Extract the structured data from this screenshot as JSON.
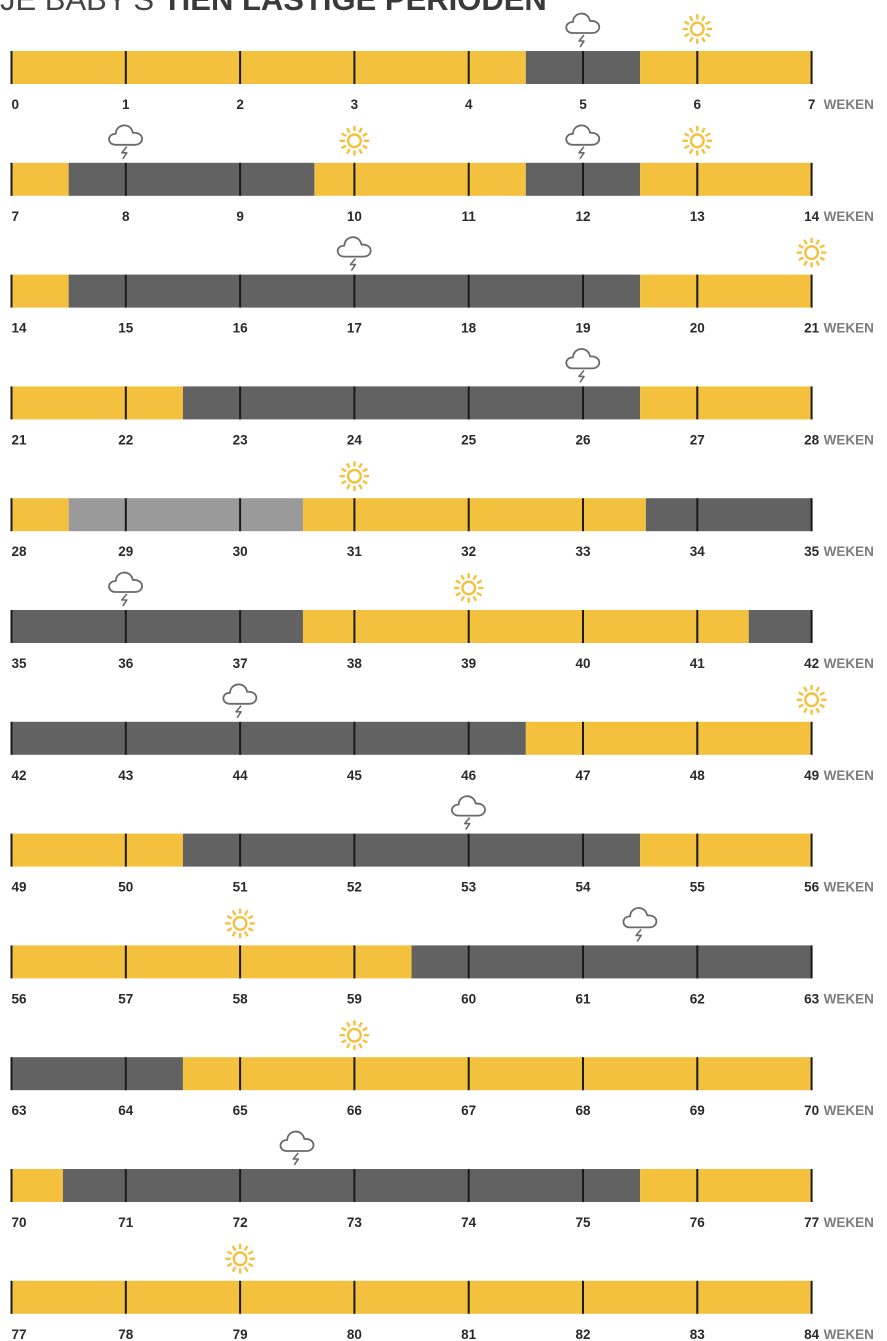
{
  "title": {
    "prefix": "JE BABY'S ",
    "highlight": "TIEN LASTIGE PERIODEN"
  },
  "colors": {
    "easy": "#f3c13e",
    "difficult": "#626262",
    "light_difficult": "#9a9a9b",
    "tick": "#1a1a1a",
    "tick_label": "#2a2a2a",
    "unit_label": "#7d7d7d",
    "sun_icon": "#f3c13e",
    "cloud_icon": "#6a6a6a"
  },
  "chart_data": {
    "type": "timeline",
    "unit_label": "WEKEN",
    "weeks_per_row": 7,
    "rows": [
      {
        "start": 0,
        "segments": [
          [
            0,
            4.5,
            "easy"
          ],
          [
            4.5,
            5.5,
            "difficult"
          ],
          [
            5.5,
            7,
            "easy"
          ]
        ],
        "icons": [
          {
            "type": "cloud-icon",
            "week": 5
          },
          {
            "type": "sun-icon",
            "week": 6
          }
        ]
      },
      {
        "start": 7,
        "segments": [
          [
            7,
            7.5,
            "easy"
          ],
          [
            7.5,
            9.65,
            "difficult"
          ],
          [
            9.65,
            11.5,
            "easy"
          ],
          [
            11.5,
            12.5,
            "difficult"
          ],
          [
            12.5,
            14,
            "easy"
          ]
        ],
        "icons": [
          {
            "type": "cloud-icon",
            "week": 8
          },
          {
            "type": "sun-icon",
            "week": 10
          },
          {
            "type": "cloud-icon",
            "week": 12
          },
          {
            "type": "sun-icon",
            "week": 13
          }
        ]
      },
      {
        "start": 14,
        "segments": [
          [
            14,
            14.5,
            "easy"
          ],
          [
            14.5,
            19.5,
            "difficult"
          ],
          [
            19.5,
            21,
            "easy"
          ]
        ],
        "icons": [
          {
            "type": "cloud-icon",
            "week": 17
          },
          {
            "type": "sun-icon",
            "week": 21
          }
        ]
      },
      {
        "start": 21,
        "segments": [
          [
            21,
            22.5,
            "easy"
          ],
          [
            22.5,
            26.5,
            "difficult"
          ],
          [
            26.5,
            28,
            "easy"
          ]
        ],
        "icons": [
          {
            "type": "cloud-icon",
            "week": 26
          }
        ]
      },
      {
        "start": 28,
        "segments": [
          [
            28,
            28.5,
            "easy"
          ],
          [
            28.5,
            30.55,
            "light_difficult"
          ],
          [
            30.55,
            33.55,
            "easy"
          ],
          [
            33.55,
            35,
            "difficult"
          ]
        ],
        "icons": [
          {
            "type": "sun-icon",
            "week": 31
          }
        ]
      },
      {
        "start": 35,
        "segments": [
          [
            35,
            37.55,
            "difficult"
          ],
          [
            37.55,
            41.45,
            "easy"
          ],
          [
            41.45,
            42,
            "difficult"
          ]
        ],
        "icons": [
          {
            "type": "cloud-icon",
            "week": 36
          },
          {
            "type": "sun-icon",
            "week": 39
          }
        ]
      },
      {
        "start": 42,
        "segments": [
          [
            42,
            46.5,
            "difficult"
          ],
          [
            46.5,
            49,
            "easy"
          ]
        ],
        "icons": [
          {
            "type": "cloud-icon",
            "week": 44
          },
          {
            "type": "sun-icon",
            "week": 49
          }
        ]
      },
      {
        "start": 49,
        "segments": [
          [
            49,
            50.5,
            "easy"
          ],
          [
            50.5,
            54.5,
            "difficult"
          ],
          [
            54.5,
            56,
            "easy"
          ]
        ],
        "icons": [
          {
            "type": "cloud-icon",
            "week": 53
          }
        ]
      },
      {
        "start": 56,
        "segments": [
          [
            56,
            59.5,
            "easy"
          ],
          [
            59.5,
            63,
            "difficult"
          ]
        ],
        "icons": [
          {
            "type": "sun-icon",
            "week": 58
          },
          {
            "type": "cloud-icon",
            "week": 61.5
          }
        ]
      },
      {
        "start": 63,
        "segments": [
          [
            63,
            64.5,
            "difficult"
          ],
          [
            64.5,
            70,
            "easy"
          ]
        ],
        "icons": [
          {
            "type": "sun-icon",
            "week": 66
          }
        ]
      },
      {
        "start": 70,
        "segments": [
          [
            70,
            70.45,
            "easy"
          ],
          [
            70.45,
            75.5,
            "difficult"
          ],
          [
            75.5,
            77,
            "easy"
          ]
        ],
        "icons": [
          {
            "type": "cloud-icon",
            "week": 72.5
          }
        ]
      },
      {
        "start": 77,
        "segments": [
          [
            77,
            84,
            "easy"
          ]
        ],
        "icons": [
          {
            "type": "sun-icon",
            "week": 79
          }
        ]
      }
    ]
  }
}
